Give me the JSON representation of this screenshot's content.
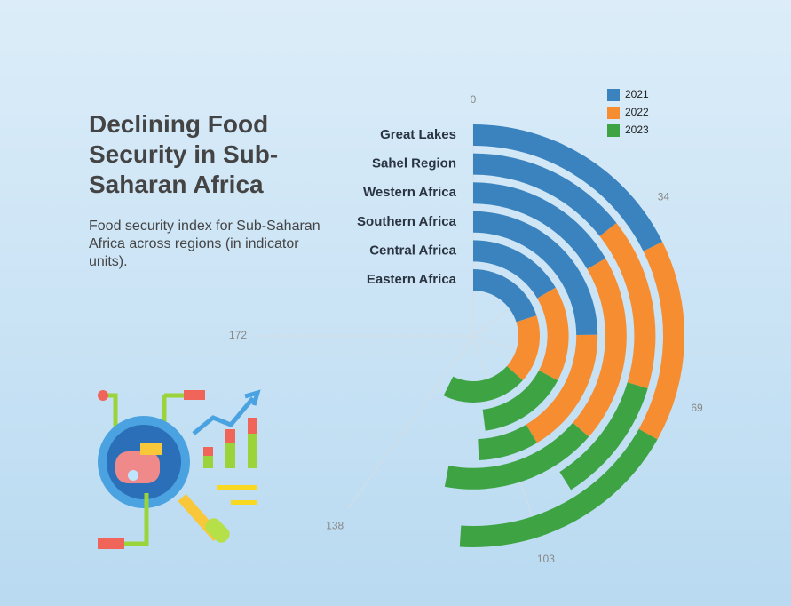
{
  "chart_data": {
    "type": "barpolar",
    "title": "Declining Food Security in Sub-Saharan Africa",
    "subtitle": "Food security index for Sub-Saharan Africa across regions (in indicator units).",
    "categories": [
      "Great Lakes",
      "Sahel Region",
      "Western Africa",
      "Southern Africa",
      "Central Africa",
      "Eastern Africa"
    ],
    "series": [
      {
        "name": "2021",
        "color": "#3a83bf",
        "values": [
          40.5,
          33,
          38,
          57,
          38,
          46
        ]
      },
      {
        "name": "2022",
        "color": "#f68d30",
        "values": [
          35.5,
          35,
          45.5,
          38,
          37,
          38
        ]
      },
      {
        "name": "2023",
        "color": "#3ea443",
        "values": [
          41,
          26,
          38,
          18,
          35,
          47.5
        ]
      }
    ],
    "xlim": [
      0,
      229.33
    ],
    "xticks": [
      0,
      {
        "value": 34.4,
        "label": "34"
      },
      {
        "value": 68.8,
        "label": "69"
      },
      {
        "value": 103.2,
        "label": "103"
      },
      {
        "value": 137.6,
        "label": "138"
      },
      172
    ],
    "legend": "top-right"
  }
}
